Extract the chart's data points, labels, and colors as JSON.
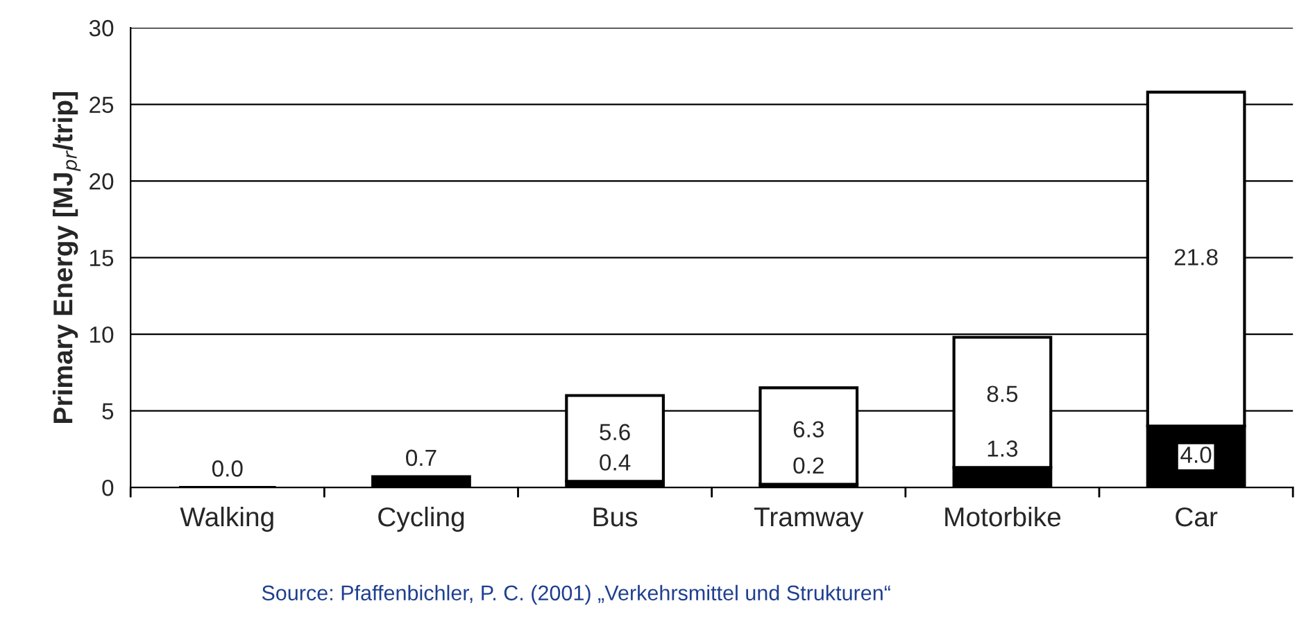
{
  "chart_data": {
    "type": "bar",
    "stacked": true,
    "ylabel": "Primary Energy [MJ$_{pr}$/trip]",
    "categories": [
      "Walking",
      "Cycling",
      "Bus",
      "Tramway",
      "Motorbike",
      "Car"
    ],
    "series": [
      {
        "color": "#000000",
        "values": [
          0.0,
          0.7,
          0.4,
          0.2,
          1.3,
          4.0
        ],
        "value_labels": [
          "0.0",
          "0.7",
          "0.4",
          "0.2",
          "1.3",
          "4.0"
        ]
      },
      {
        "color": "#ffffff",
        "values": [
          null,
          null,
          5.6,
          6.3,
          8.5,
          21.8
        ],
        "value_labels": [
          null,
          null,
          "5.6",
          "6.3",
          "8.5",
          "21.8"
        ]
      }
    ],
    "ylim": [
      0,
      30
    ],
    "yticks": [
      0,
      5,
      10,
      15,
      20,
      25,
      30
    ],
    "grid": "y",
    "legend": false,
    "annotations": [
      "Source: Pfaffenbichler, P. C. (2001) „Verkehrsmittel und Strukturen“"
    ]
  }
}
